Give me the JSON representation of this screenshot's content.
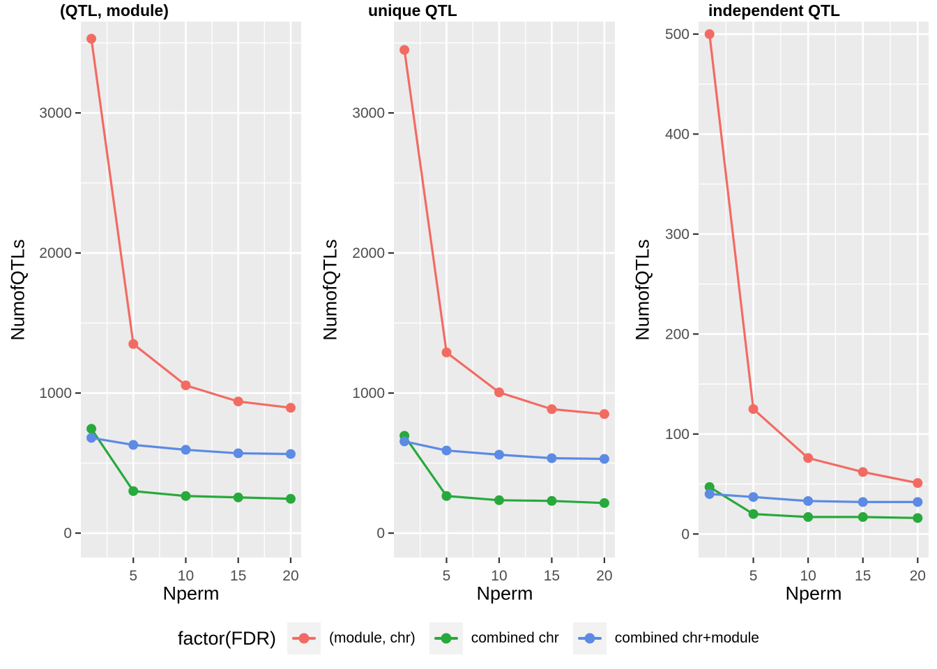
{
  "legend": {
    "title": "factor(FDR)",
    "items": [
      {
        "label": "(module, chr)",
        "color": "#F26B63"
      },
      {
        "label": "combined chr",
        "color": "#27A93B"
      },
      {
        "label": "combined chr+module",
        "color": "#5C8AE4"
      }
    ]
  },
  "style_colors": {
    "panel_background": "#EBEBEB",
    "gridline": "#FFFFFF",
    "tick_mark": "#333333",
    "tick_label": "#4D4D4D"
  },
  "chart_data": [
    {
      "type": "line",
      "title": "(QTL, module)",
      "xlabel": "Nperm",
      "ylabel": "NumofQTLs",
      "x": [
        1,
        5,
        10,
        15,
        20
      ],
      "x_ticks": [
        5,
        10,
        15,
        20
      ],
      "x_minor": [
        2.5,
        7.5,
        12.5,
        17.5
      ],
      "y_ticks": [
        0,
        1000,
        2000,
        3000
      ],
      "y_minor": [
        500,
        1500,
        2500,
        3500
      ],
      "xlim": [
        0,
        21
      ],
      "ylim": [
        -174,
        3652
      ],
      "grid": true,
      "legend_position": "bottom",
      "series": [
        {
          "name": "(module, chr)",
          "color": "#F26B63",
          "values": [
            3530,
            1350,
            1055,
            940,
            895
          ]
        },
        {
          "name": "combined chr",
          "color": "#27A93B",
          "values": [
            745,
            300,
            265,
            255,
            245
          ]
        },
        {
          "name": "combined chr+module",
          "color": "#5C8AE4",
          "values": [
            680,
            630,
            595,
            570,
            565
          ]
        }
      ]
    },
    {
      "type": "line",
      "title": "unique QTL",
      "xlabel": "Nperm",
      "ylabel": "NumofQTLs",
      "x": [
        1,
        5,
        10,
        15,
        20
      ],
      "x_ticks": [
        5,
        10,
        15,
        20
      ],
      "x_minor": [
        2.5,
        7.5,
        12.5,
        17.5
      ],
      "y_ticks": [
        0,
        1000,
        2000,
        3000
      ],
      "y_minor": [
        500,
        1500,
        2500,
        3500
      ],
      "xlim": [
        0,
        21
      ],
      "ylim": [
        -174,
        3652
      ],
      "grid": true,
      "legend_position": "bottom",
      "series": [
        {
          "name": "(module, chr)",
          "color": "#F26B63",
          "values": [
            3450,
            1290,
            1005,
            885,
            850
          ]
        },
        {
          "name": "combined chr",
          "color": "#27A93B",
          "values": [
            695,
            265,
            235,
            230,
            215
          ]
        },
        {
          "name": "combined chr+module",
          "color": "#5C8AE4",
          "values": [
            655,
            590,
            560,
            535,
            530
          ]
        }
      ]
    },
    {
      "type": "line",
      "title": "independent QTL",
      "xlabel": "Nperm",
      "ylabel": "NumofQTLs",
      "x": [
        1,
        5,
        10,
        15,
        20
      ],
      "x_ticks": [
        5,
        10,
        15,
        20
      ],
      "x_minor": [
        2.5,
        7.5,
        12.5,
        17.5
      ],
      "y_ticks": [
        0,
        100,
        200,
        300,
        400,
        500
      ],
      "y_minor": [
        50,
        150,
        250,
        350,
        450
      ],
      "xlim": [
        0,
        21
      ],
      "ylim": [
        -23.5,
        512.5
      ],
      "grid": true,
      "legend_position": "bottom",
      "series": [
        {
          "name": "(module, chr)",
          "color": "#F26B63",
          "values": [
            500,
            125,
            76,
            62,
            51
          ]
        },
        {
          "name": "combined chr",
          "color": "#27A93B",
          "values": [
            47,
            20,
            17,
            17,
            16
          ]
        },
        {
          "name": "combined chr+module",
          "color": "#5C8AE4",
          "values": [
            40,
            37,
            33,
            32,
            32
          ]
        }
      ]
    }
  ]
}
